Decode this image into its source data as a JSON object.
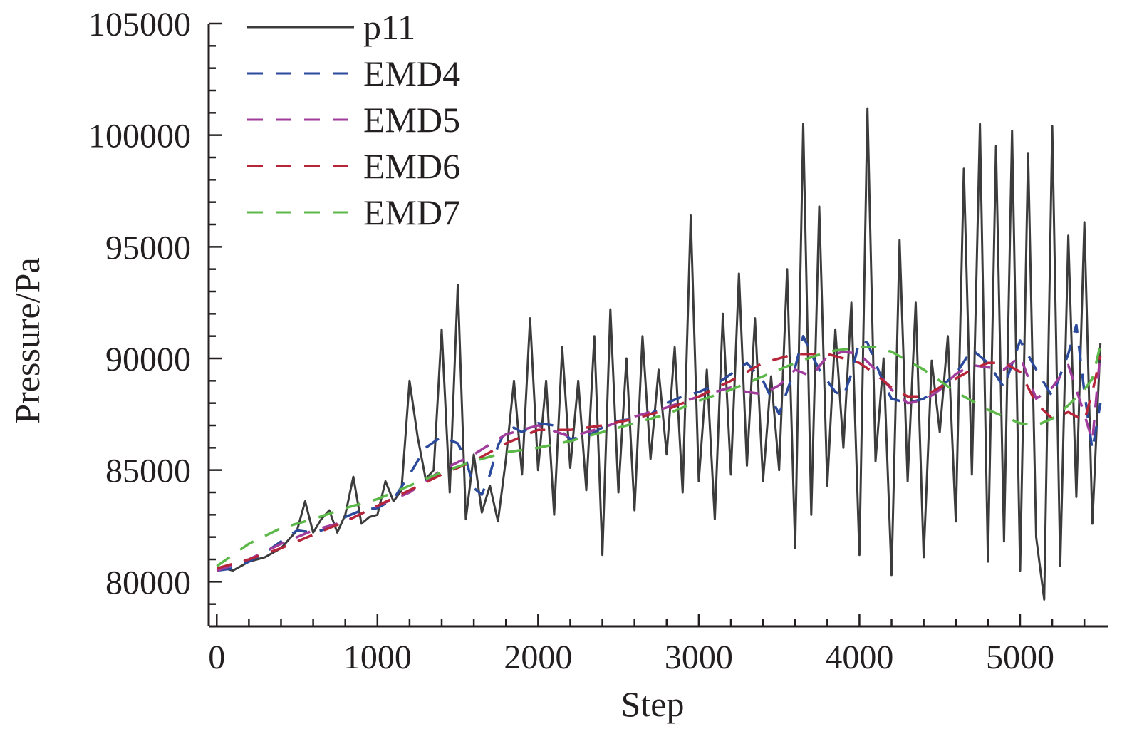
{
  "chart_data": {
    "type": "line",
    "title": "",
    "xlabel": "Step",
    "ylabel": "Pressure/Pa",
    "xlim": [
      -50,
      5550
    ],
    "ylim": [
      78000,
      105000
    ],
    "xticks": [
      0,
      1000,
      2000,
      3000,
      4000,
      5000
    ],
    "xtick_labels": [
      "0",
      "1000",
      "2000",
      "3000",
      "4000",
      "5000"
    ],
    "yticks": [
      80000,
      85000,
      90000,
      95000,
      100000,
      105000
    ],
    "ytick_labels": [
      "80000",
      "85000",
      "90000",
      "95000",
      "100000",
      "105000"
    ],
    "legend_position": "top-left",
    "series": [
      {
        "name": "p11",
        "color": "#3c3c3c",
        "dash": "solid",
        "x": [
          0,
          50,
          100,
          150,
          200,
          250,
          300,
          350,
          400,
          450,
          500,
          550,
          600,
          650,
          700,
          750,
          800,
          850,
          900,
          950,
          1000,
          1050,
          1100,
          1150,
          1200,
          1250,
          1300,
          1350,
          1400,
          1450,
          1500,
          1550,
          1600,
          1650,
          1700,
          1750,
          1800,
          1850,
          1900,
          1950,
          2000,
          2050,
          2100,
          2150,
          2200,
          2250,
          2300,
          2350,
          2400,
          2450,
          2500,
          2550,
          2600,
          2650,
          2700,
          2750,
          2800,
          2850,
          2900,
          2950,
          3000,
          3050,
          3100,
          3150,
          3200,
          3250,
          3300,
          3350,
          3400,
          3450,
          3500,
          3550,
          3600,
          3650,
          3700,
          3750,
          3800,
          3850,
          3900,
          3950,
          4000,
          4050,
          4100,
          4150,
          4200,
          4250,
          4300,
          4350,
          4400,
          4450,
          4500,
          4550,
          4600,
          4650,
          4700,
          4750,
          4800,
          4850,
          4900,
          4950,
          5000,
          5050,
          5100,
          5150,
          5200,
          5250,
          5300,
          5350,
          5400,
          5450,
          5500
        ],
        "values": [
          80500,
          80600,
          80500,
          80700,
          80900,
          81000,
          81100,
          81300,
          81500,
          81900,
          82300,
          83600,
          82200,
          82800,
          83200,
          82200,
          83000,
          84700,
          82600,
          82900,
          83000,
          84500,
          83600,
          84100,
          89000,
          86500,
          84600,
          85000,
          91300,
          84000,
          93300,
          82800,
          85700,
          83100,
          84300,
          82700,
          85500,
          89000,
          84800,
          91800,
          85000,
          89000,
          83000,
          90500,
          85100,
          89000,
          84100,
          91000,
          81200,
          92200,
          84000,
          90000,
          83200,
          91000,
          85500,
          89500,
          85700,
          90500,
          84000,
          96400,
          84500,
          89500,
          82800,
          92000,
          84800,
          93800,
          85200,
          91800,
          84500,
          89200,
          85000,
          94000,
          81500,
          100500,
          83000,
          96800,
          84300,
          91300,
          86000,
          92500,
          81200,
          101200,
          85400,
          90000,
          80300,
          95300,
          84500,
          92500,
          81100,
          89900,
          86700,
          91000,
          82700,
          98500,
          84800,
          100500,
          80900,
          99500,
          81800,
          100200,
          80500,
          99200,
          82000,
          79200,
          100400,
          80700,
          95500,
          83800,
          96100,
          82600,
          90700
        ]
      },
      {
        "name": "EMD4",
        "color": "#2b4a9c",
        "dash": "22 18",
        "x": [
          0,
          100,
          200,
          300,
          400,
          500,
          600,
          700,
          800,
          900,
          1000,
          1100,
          1200,
          1300,
          1400,
          1500,
          1550,
          1600,
          1650,
          1700,
          1750,
          1800,
          1850,
          1900,
          2000,
          2100,
          2200,
          2300,
          2400,
          2500,
          2600,
          2700,
          2800,
          2900,
          3000,
          3100,
          3200,
          3300,
          3400,
          3500,
          3600,
          3650,
          3700,
          3750,
          3800,
          3850,
          3900,
          3950,
          4000,
          4050,
          4100,
          4150,
          4200,
          4300,
          4400,
          4500,
          4600,
          4700,
          4800,
          4900,
          5000,
          5100,
          5200,
          5300,
          5350,
          5400,
          5450,
          5500
        ],
        "values": [
          80500,
          80600,
          80900,
          81300,
          81800,
          82300,
          82200,
          82400,
          82900,
          83200,
          83300,
          83700,
          84800,
          86000,
          86500,
          86200,
          85500,
          84200,
          83900,
          84800,
          86100,
          86800,
          86900,
          86700,
          87100,
          87000,
          86400,
          86500,
          86900,
          87200,
          87300,
          87500,
          88000,
          88300,
          88500,
          88800,
          89300,
          89800,
          89000,
          87500,
          89600,
          91000,
          90200,
          89500,
          89000,
          88500,
          88300,
          89300,
          90800,
          90700,
          89800,
          88900,
          88200,
          88000,
          88200,
          88700,
          89300,
          90400,
          89800,
          88700,
          90800,
          89500,
          88300,
          90200,
          91500,
          88500,
          85900,
          88000
        ]
      },
      {
        "name": "EMD5",
        "color": "#a03c9c",
        "dash": "22 18",
        "x": [
          0,
          200,
          400,
          600,
          800,
          1000,
          1200,
          1400,
          1600,
          1800,
          2000,
          2200,
          2400,
          2600,
          2800,
          3000,
          3200,
          3300,
          3400,
          3500,
          3600,
          3700,
          3800,
          3900,
          4000,
          4100,
          4200,
          4300,
          4400,
          4500,
          4600,
          4700,
          4800,
          4900,
          5000,
          5100,
          5200,
          5300,
          5400,
          5450,
          5500
        ],
        "values": [
          80500,
          81000,
          81700,
          82300,
          82700,
          83400,
          84000,
          85000,
          85700,
          86600,
          87000,
          86500,
          86900,
          87400,
          87800,
          88300,
          88700,
          88500,
          88400,
          88800,
          89500,
          89200,
          90100,
          90300,
          90200,
          89500,
          88600,
          88000,
          88100,
          88600,
          89300,
          89700,
          89600,
          89500,
          90100,
          88200,
          88700,
          89700,
          87500,
          86300,
          90300
        ]
      },
      {
        "name": "EMD6",
        "color": "#b7253a",
        "dash": "22 18",
        "x": [
          0,
          200,
          400,
          600,
          800,
          1000,
          1200,
          1400,
          1600,
          1800,
          2000,
          2200,
          2400,
          2600,
          2800,
          3000,
          3200,
          3400,
          3600,
          3800,
          4000,
          4100,
          4200,
          4300,
          4400,
          4500,
          4600,
          4700,
          4800,
          4900,
          5000,
          5100,
          5200,
          5300,
          5400,
          5450,
          5500
        ],
        "values": [
          80600,
          81000,
          81500,
          82100,
          82700,
          83400,
          84100,
          84800,
          85400,
          86200,
          86800,
          86800,
          87000,
          87300,
          87700,
          88300,
          89000,
          89800,
          90200,
          90200,
          89800,
          89300,
          88700,
          88300,
          88300,
          88700,
          89100,
          89500,
          89800,
          89800,
          89400,
          88000,
          87300,
          87600,
          87200,
          88500,
          90100
        ]
      },
      {
        "name": "EMD7",
        "color": "#5cb848",
        "dash": "22 18",
        "x": [
          0,
          200,
          400,
          600,
          800,
          1000,
          1200,
          1400,
          1600,
          1800,
          2000,
          2200,
          2400,
          2600,
          2800,
          3000,
          3200,
          3400,
          3600,
          3800,
          4000,
          4100,
          4200,
          4300,
          4400,
          4500,
          4600,
          4700,
          4800,
          4900,
          5000,
          5100,
          5200,
          5300,
          5400,
          5450,
          5500
        ],
        "values": [
          80700,
          81700,
          82400,
          82800,
          83300,
          83700,
          84300,
          84900,
          85400,
          85800,
          86000,
          86300,
          86700,
          87100,
          87500,
          88100,
          88600,
          89200,
          89800,
          90300,
          90500,
          90500,
          90300,
          89900,
          89500,
          89000,
          88500,
          88100,
          87700,
          87400,
          87100,
          87000,
          87300,
          87900,
          88600,
          89100,
          90600
        ]
      }
    ]
  }
}
